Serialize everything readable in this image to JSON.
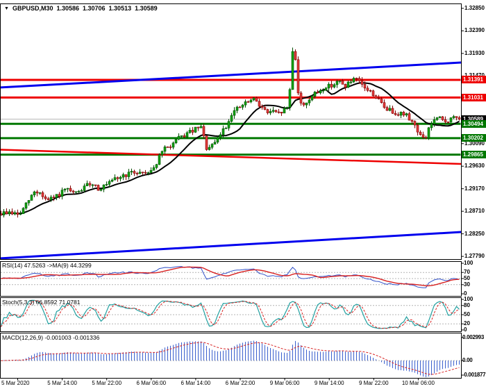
{
  "header": {
    "symbol": "GBPUSD,M30",
    "open": "1.30586",
    "high": "1.30706",
    "low": "1.30513",
    "close": "1.30589",
    "dropdown_icon": "symbol-dropdown"
  },
  "chart_data": {
    "type": "candlestick",
    "symbol": "GBPUSD",
    "timeframe": "M30",
    "last_price": 1.30589,
    "x_labels": [
      "5 Mar 2020",
      "5 Mar 14:00",
      "5 Mar 22:00",
      "6 Mar 06:00",
      "6 Mar 14:00",
      "6 Mar 22:00",
      "9 Mar 06:00",
      "9 Mar 14:00",
      "9 Mar 22:00",
      "10 Mar 06:00"
    ],
    "y_ticks": [
      "1.32850",
      "1.32390",
      "1.31930",
      "1.31470",
      "1.31010",
      "1.30550",
      "1.30090",
      "1.29630",
      "1.29170",
      "1.28710",
      "1.28250",
      "1.27790"
    ],
    "price_levels": [
      {
        "price": 1.31391,
        "label": "1.31391",
        "color": "#ee0000",
        "role": "resistance"
      },
      {
        "price": 1.31031,
        "label": "1.31031",
        "color": "#ee0000",
        "role": "resistance"
      },
      {
        "price": 1.30494,
        "label": "1.30494",
        "color": "#007800",
        "role": "support"
      },
      {
        "price": 1.30202,
        "label": "1.30202",
        "color": "#007800",
        "role": "support"
      },
      {
        "price": 1.29865,
        "label": "1.29865",
        "color": "#007800",
        "role": "support"
      }
    ],
    "current_price_badge": {
      "label": "1.30589",
      "bg": "#000000"
    },
    "trend_lines": [
      {
        "p1": 1.31235,
        "p2": 1.31745,
        "color": "#0000ee",
        "width": 3,
        "role": "channel-upper"
      },
      {
        "p1": 1.27749,
        "p2": 1.28287,
        "color": "#0000ee",
        "width": 3,
        "role": "channel-lower"
      },
      {
        "p1": 1.29966,
        "p2": 1.29676,
        "color": "#ee0000",
        "width": 2.5,
        "role": "descending-resistance"
      }
    ],
    "price_path_anchors": [
      [
        0,
        1.2866
      ],
      [
        14,
        1.2869
      ],
      [
        28,
        1.2863
      ],
      [
        40,
        1.289
      ],
      [
        50,
        1.2912
      ],
      [
        58,
        1.2908
      ],
      [
        68,
        1.2892
      ],
      [
        80,
        1.29
      ],
      [
        95,
        1.2915
      ],
      [
        108,
        1.2906
      ],
      [
        122,
        1.292
      ],
      [
        132,
        1.293
      ],
      [
        142,
        1.2917
      ],
      [
        155,
        1.2925
      ],
      [
        168,
        1.2938
      ],
      [
        182,
        1.2946
      ],
      [
        196,
        1.2951
      ],
      [
        210,
        1.295
      ],
      [
        222,
        1.296
      ],
      [
        234,
        1.2995
      ],
      [
        246,
        1.3005
      ],
      [
        256,
        1.3018
      ],
      [
        268,
        1.3028
      ],
      [
        280,
        1.3037
      ],
      [
        290,
        1.3042
      ],
      [
        297,
        1.3
      ],
      [
        304,
        1.3
      ],
      [
        312,
        1.3015
      ],
      [
        320,
        1.3035
      ],
      [
        328,
        1.3048
      ],
      [
        332,
        1.307
      ],
      [
        340,
        1.3078
      ],
      [
        350,
        1.3088
      ],
      [
        360,
        1.3096
      ],
      [
        368,
        1.3099
      ],
      [
        376,
        1.3085
      ],
      [
        384,
        1.3072
      ],
      [
        392,
        1.3075
      ],
      [
        400,
        1.3068
      ],
      [
        408,
        1.3077
      ],
      [
        416,
        1.3085
      ],
      [
        421,
        1.32
      ],
      [
        425,
        1.3192
      ],
      [
        429,
        1.3118
      ],
      [
        434,
        1.3085
      ],
      [
        440,
        1.3092
      ],
      [
        448,
        1.3104
      ],
      [
        456,
        1.3112
      ],
      [
        464,
        1.312
      ],
      [
        472,
        1.3126
      ],
      [
        480,
        1.313
      ],
      [
        488,
        1.3136
      ],
      [
        496,
        1.3126
      ],
      [
        504,
        1.3134
      ],
      [
        512,
        1.314
      ],
      [
        520,
        1.313
      ],
      [
        528,
        1.312
      ],
      [
        536,
        1.3112
      ],
      [
        544,
        1.31
      ],
      [
        552,
        1.3085
      ],
      [
        560,
        1.3078
      ],
      [
        568,
        1.3073
      ],
      [
        576,
        1.3071
      ],
      [
        584,
        1.3068
      ],
      [
        592,
        1.3058
      ],
      [
        600,
        1.304
      ],
      [
        607,
        1.3022
      ],
      [
        612,
        1.3015
      ],
      [
        617,
        1.304
      ],
      [
        624,
        1.3055
      ],
      [
        632,
        1.3061
      ],
      [
        640,
        1.3054
      ],
      [
        648,
        1.3058
      ],
      [
        656,
        1.3063
      ],
      [
        664,
        1.3059
      ]
    ],
    "candles": {
      "count": 166,
      "spacing": 4,
      "body_width": 3,
      "seed": 9,
      "noise": 0.001,
      "wick": 0.0007,
      "spike_high": 1.3205,
      "ma_period": 13
    },
    "indicators": {
      "rsi": {
        "label": "RSI(14) 47.5263  ->MA(9) 44.3299",
        "period": 14,
        "ma_period": 9,
        "ticks": [
          100,
          70,
          50,
          30,
          0
        ],
        "grid": [
          70,
          50,
          30
        ]
      },
      "stoch": {
        "label": "Stoch(5,3,3) 66.8592 71.0781",
        "k": 5,
        "slowing": 3,
        "d": 3,
        "ticks": [
          100,
          80,
          50,
          20,
          0
        ],
        "grid": [
          80,
          50,
          20
        ]
      },
      "macd": {
        "label": "MACD(12,26,9) -0.001003 -0.001336",
        "fast": 12,
        "slow": 26,
        "signal": 9,
        "ticks": [
          {
            "v": 0.002993,
            "label": "0.002993"
          },
          {
            "v": 0,
            "label": "0.00"
          },
          {
            "v": -0.001877,
            "label": "-0.001877"
          }
        ],
        "grid": [
          0
        ],
        "max": 0.002993,
        "min": -0.001877
      }
    },
    "colors": {
      "background": "#ffffff",
      "border": "#000000",
      "up_fill": "#12a312",
      "up_edge": "#004d00",
      "down_fill": "#e23b3b",
      "down_edge": "#7d0000",
      "ma": "#000000",
      "grid_dash": "#b4b4b4",
      "current_price_line": "#b8b8b8",
      "rsi_line": "#3050c8",
      "rsi_ma": "#d82020",
      "stoch_k": "#20a0a0",
      "stoch_d": "#d82020",
      "macd_bar": "#3a5fcd",
      "macd_signal": "#d82020",
      "badge_text": "#ffffff"
    }
  }
}
